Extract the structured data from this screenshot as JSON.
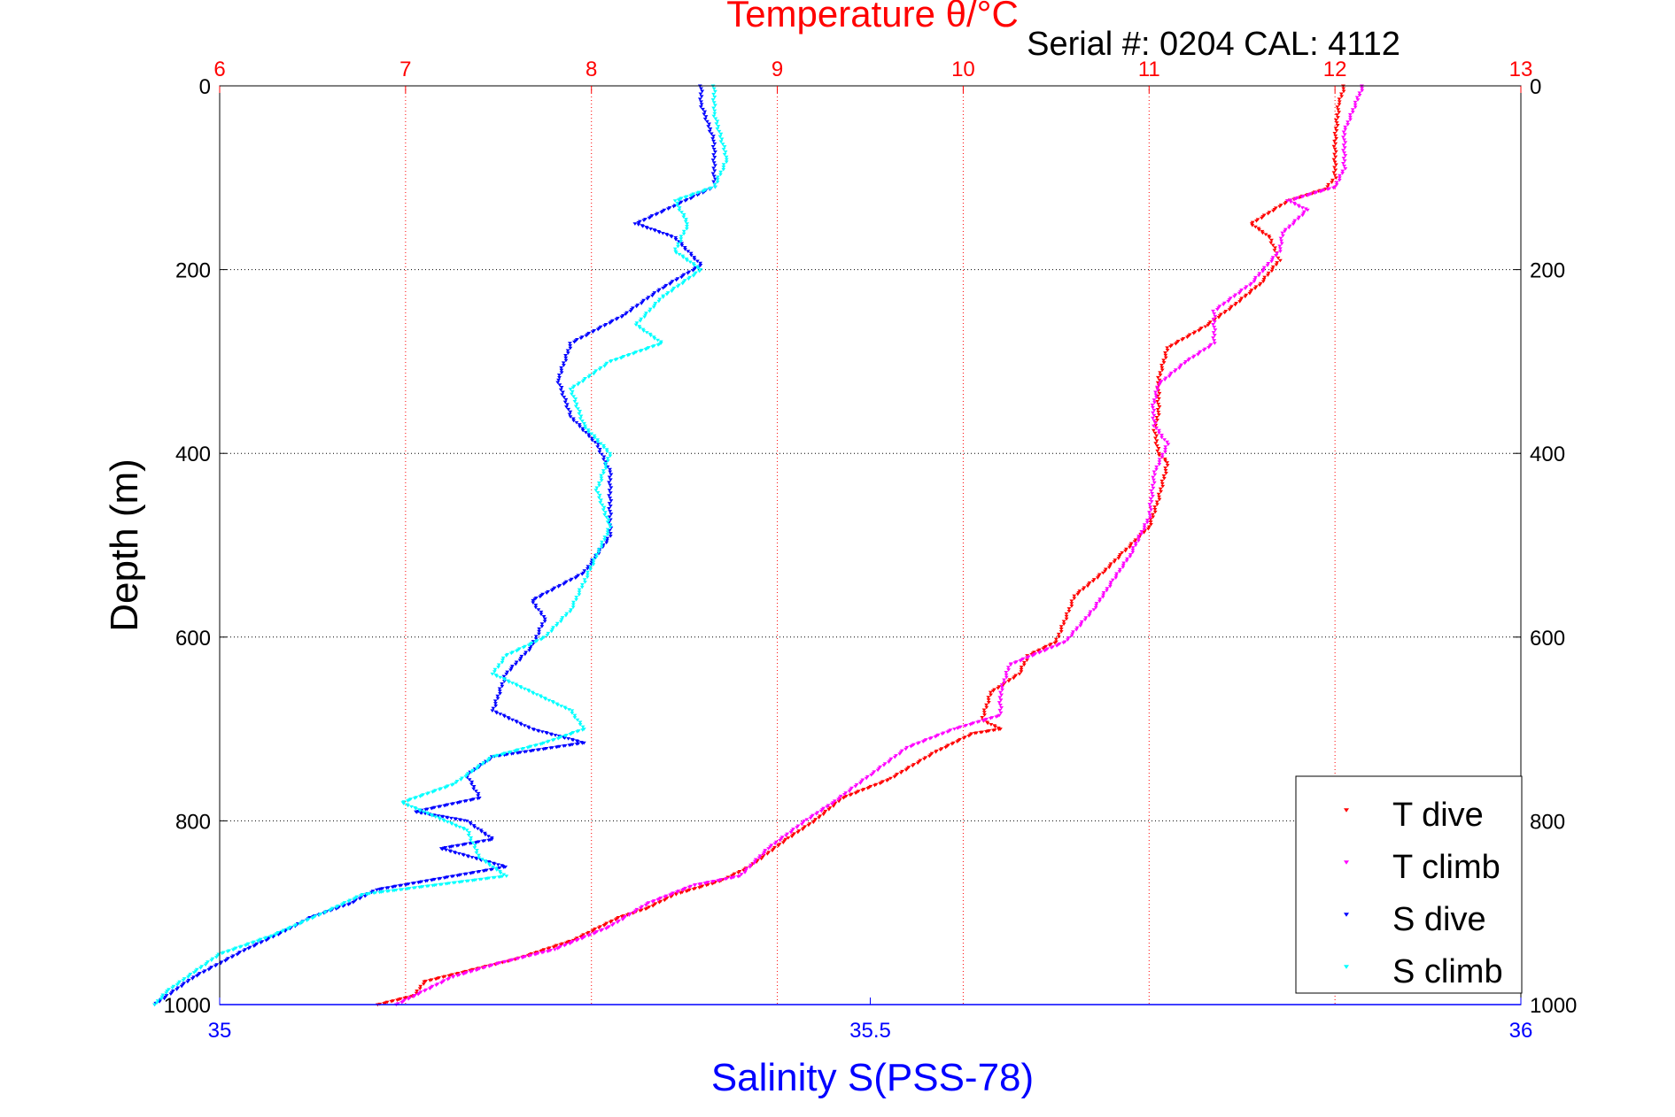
{
  "chart_data": {
    "type": "scatter",
    "title": "Temperature θ/°C",
    "subtitle": "Serial #: 0204  CAL: 4112",
    "ylabel": "Depth (m)",
    "xlabel": "Salinity S(PSS-78)",
    "top_axis": {
      "label": "Temperature θ/°C",
      "range": [
        6,
        13
      ],
      "ticks": [
        "6",
        "7",
        "8",
        "9",
        "10",
        "11",
        "12",
        "13"
      ],
      "color": "#ff0000"
    },
    "bottom_axis": {
      "label": "Salinity S(PSS-78)",
      "range": [
        35,
        36
      ],
      "ticks": [
        "35",
        "35.5",
        "36"
      ],
      "color": "#0000ff"
    },
    "y_axis": {
      "range": [
        0,
        1000
      ],
      "reversed": true,
      "ticks": [
        "0",
        "200",
        "400",
        "600",
        "800",
        "1000"
      ]
    },
    "grid": true,
    "legend": {
      "placement": "bottom-right",
      "entries": [
        {
          "name": "T dive",
          "color": "#ff0000"
        },
        {
          "name": "T climb",
          "color": "#ff00ff"
        },
        {
          "name": "S dive",
          "color": "#0000ff"
        },
        {
          "name": "S climb",
          "color": "#00ffff"
        }
      ]
    },
    "series": [
      {
        "name": "T dive",
        "axis": "temperature",
        "color": "#ff0000",
        "points": [
          [
            12.05,
            0
          ],
          [
            12.02,
            20
          ],
          [
            12.0,
            60
          ],
          [
            12.0,
            100
          ],
          [
            11.95,
            112
          ],
          [
            11.75,
            125
          ],
          [
            11.55,
            150
          ],
          [
            11.65,
            165
          ],
          [
            11.7,
            190
          ],
          [
            11.6,
            215
          ],
          [
            11.45,
            240
          ],
          [
            11.3,
            262
          ],
          [
            11.1,
            285
          ],
          [
            11.05,
            320
          ],
          [
            11.05,
            355
          ],
          [
            11.03,
            375
          ],
          [
            11.05,
            400
          ],
          [
            11.1,
            410
          ],
          [
            11.05,
            450
          ],
          [
            11.0,
            480
          ],
          [
            10.85,
            510
          ],
          [
            10.75,
            530
          ],
          [
            10.6,
            555
          ],
          [
            10.55,
            580
          ],
          [
            10.5,
            605
          ],
          [
            10.35,
            620
          ],
          [
            10.3,
            640
          ],
          [
            10.15,
            660
          ],
          [
            10.1,
            690
          ],
          [
            10.2,
            700
          ],
          [
            10.05,
            705
          ],
          [
            9.85,
            725
          ],
          [
            9.6,
            755
          ],
          [
            9.35,
            775
          ],
          [
            9.2,
            800
          ],
          [
            9.05,
            820
          ],
          [
            8.85,
            850
          ],
          [
            8.7,
            865
          ],
          [
            8.45,
            880
          ],
          [
            8.3,
            895
          ],
          [
            8.15,
            905
          ],
          [
            7.9,
            930
          ],
          [
            7.6,
            950
          ],
          [
            7.3,
            965
          ],
          [
            7.1,
            975
          ],
          [
            7.05,
            990
          ],
          [
            6.85,
            1000
          ]
        ]
      },
      {
        "name": "T climb",
        "axis": "temperature",
        "color": "#ff00ff",
        "points": [
          [
            12.15,
            0
          ],
          [
            12.12,
            15
          ],
          [
            12.05,
            50
          ],
          [
            12.05,
            90
          ],
          [
            12.0,
            110
          ],
          [
            11.75,
            125
          ],
          [
            11.85,
            135
          ],
          [
            11.72,
            160
          ],
          [
            11.7,
            180
          ],
          [
            11.55,
            215
          ],
          [
            11.35,
            245
          ],
          [
            11.35,
            280
          ],
          [
            11.2,
            300
          ],
          [
            11.05,
            325
          ],
          [
            11.02,
            350
          ],
          [
            11.03,
            370
          ],
          [
            11.1,
            390
          ],
          [
            11.03,
            420
          ],
          [
            11.0,
            470
          ],
          [
            10.9,
            510
          ],
          [
            10.8,
            540
          ],
          [
            10.7,
            570
          ],
          [
            10.55,
            605
          ],
          [
            10.25,
            630
          ],
          [
            10.2,
            660
          ],
          [
            10.2,
            685
          ],
          [
            9.95,
            700
          ],
          [
            9.7,
            720
          ],
          [
            9.5,
            750
          ],
          [
            9.3,
            780
          ],
          [
            9.15,
            800
          ],
          [
            8.95,
            830
          ],
          [
            8.8,
            860
          ],
          [
            8.55,
            870
          ],
          [
            8.3,
            890
          ],
          [
            8.1,
            915
          ],
          [
            7.8,
            940
          ],
          [
            7.5,
            955
          ],
          [
            7.25,
            970
          ],
          [
            7.05,
            990
          ],
          [
            6.95,
            1000
          ]
        ]
      },
      {
        "name": "S dive",
        "axis": "salinity",
        "color": "#0000ff",
        "points": [
          [
            35.37,
            0
          ],
          [
            35.37,
            20
          ],
          [
            35.38,
            60
          ],
          [
            35.38,
            110
          ],
          [
            35.35,
            130
          ],
          [
            35.32,
            150
          ],
          [
            35.35,
            165
          ],
          [
            35.37,
            195
          ],
          [
            35.34,
            220
          ],
          [
            35.31,
            250
          ],
          [
            35.27,
            280
          ],
          [
            35.26,
            320
          ],
          [
            35.27,
            360
          ],
          [
            35.29,
            390
          ],
          [
            35.3,
            420
          ],
          [
            35.3,
            460
          ],
          [
            35.3,
            490
          ],
          [
            35.28,
            530
          ],
          [
            35.24,
            560
          ],
          [
            35.25,
            580
          ],
          [
            35.24,
            610
          ],
          [
            35.22,
            640
          ],
          [
            35.21,
            680
          ],
          [
            35.24,
            700
          ],
          [
            35.28,
            715
          ],
          [
            35.21,
            730
          ],
          [
            35.19,
            750
          ],
          [
            35.2,
            775
          ],
          [
            35.15,
            790
          ],
          [
            35.19,
            800
          ],
          [
            35.21,
            820
          ],
          [
            35.17,
            830
          ],
          [
            35.22,
            850
          ],
          [
            35.12,
            875
          ],
          [
            35.1,
            890
          ],
          [
            35.07,
            905
          ],
          [
            35.05,
            920
          ],
          [
            35.02,
            940
          ],
          [
            35.0,
            955
          ],
          [
            34.98,
            970
          ],
          [
            34.96,
            990
          ],
          [
            34.95,
            1000
          ]
        ]
      },
      {
        "name": "S climb",
        "axis": "salinity",
        "color": "#00ffff",
        "points": [
          [
            35.38,
            0
          ],
          [
            35.38,
            30
          ],
          [
            35.39,
            80
          ],
          [
            35.38,
            110
          ],
          [
            35.35,
            125
          ],
          [
            35.36,
            150
          ],
          [
            35.35,
            180
          ],
          [
            35.37,
            200
          ],
          [
            35.34,
            230
          ],
          [
            35.32,
            260
          ],
          [
            35.34,
            280
          ],
          [
            35.3,
            300
          ],
          [
            35.27,
            330
          ],
          [
            35.28,
            370
          ],
          [
            35.3,
            400
          ],
          [
            35.29,
            440
          ],
          [
            35.3,
            480
          ],
          [
            35.29,
            510
          ],
          [
            35.28,
            540
          ],
          [
            35.27,
            570
          ],
          [
            35.25,
            600
          ],
          [
            35.22,
            620
          ],
          [
            35.21,
            640
          ],
          [
            35.27,
            680
          ],
          [
            35.28,
            700
          ],
          [
            35.25,
            715
          ],
          [
            35.21,
            730
          ],
          [
            35.18,
            760
          ],
          [
            35.14,
            780
          ],
          [
            35.19,
            810
          ],
          [
            35.2,
            840
          ],
          [
            35.22,
            860
          ],
          [
            35.11,
            880
          ],
          [
            35.08,
            900
          ],
          [
            35.04,
            925
          ],
          [
            35.0,
            945
          ],
          [
            34.98,
            965
          ],
          [
            34.96,
            985
          ],
          [
            34.95,
            1000
          ]
        ]
      }
    ]
  }
}
